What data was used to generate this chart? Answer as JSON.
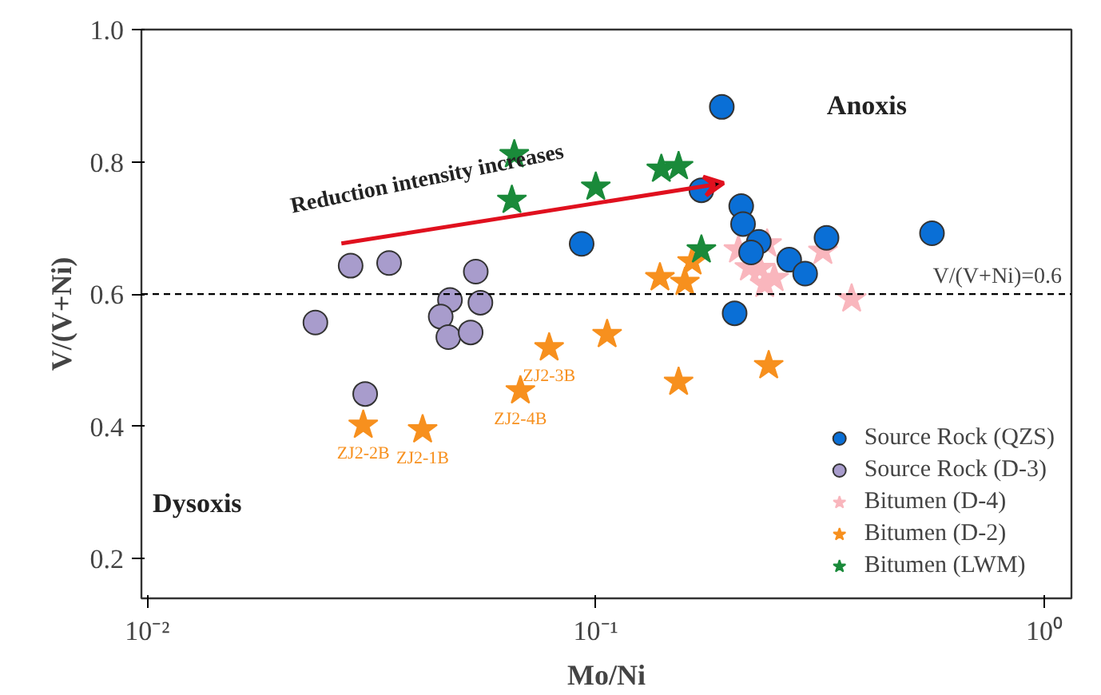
{
  "chart_data": {
    "type": "scatter",
    "xlabel": "Mo/Ni",
    "ylabel": "V/(V+Ni)",
    "log": "x",
    "grid": false,
    "legend": "bottom right",
    "xlim": [
      0.0097,
      1.15
    ],
    "xticks": [
      {
        "value": 0.01,
        "label": "10⁻²"
      },
      {
        "value": 0.1,
        "label": "10⁻¹"
      },
      {
        "value": 1,
        "label": "10⁰"
      }
    ],
    "ylim": [
      0.14,
      1.0
    ],
    "yticks": [
      0.2,
      0.4,
      0.6,
      0.8,
      {
        "value": 1.0,
        "label": "1.0"
      }
    ],
    "ref_lines": [
      {
        "axis": "y",
        "value": 0.6,
        "label": "V/(V+Ni)=0.6",
        "color": "#000000",
        "line_style": "dashed"
      }
    ],
    "series": [
      {
        "name": "Source Rock (QZS)",
        "color": "#0a6fd6",
        "marker": "circle",
        "x": [
          0.191,
          0.172,
          0.211,
          0.213,
          0.231,
          0.222,
          0.27,
          0.293,
          0.327,
          0.562,
          0.204,
          0.093
        ],
        "values": [
          0.883,
          0.757,
          0.733,
          0.706,
          0.679,
          0.663,
          0.652,
          0.631,
          0.685,
          0.692,
          0.571,
          0.676
        ]
      },
      {
        "name": "Source Rock (D-3)",
        "color": "#a89ccc",
        "marker": "circle",
        "x": [
          0.0284,
          0.0346,
          0.054,
          0.0473,
          0.0553,
          0.0451,
          0.0237,
          0.0469,
          0.0526,
          0.0306
        ],
        "values": [
          0.643,
          0.647,
          0.634,
          0.591,
          0.587,
          0.566,
          0.557,
          0.535,
          0.542,
          0.449
        ]
      },
      {
        "name": "Bitumen (D-4)",
        "color": "#f9b6bd",
        "marker": "star",
        "x": [
          0.208,
          0.241,
          0.22,
          0.232,
          0.25,
          0.238,
          0.321,
          0.372
        ],
        "values": [
          0.667,
          0.676,
          0.64,
          0.639,
          0.624,
          0.615,
          0.665,
          0.593
        ]
      },
      {
        "name": "Bitumen (D-2)",
        "color": "#f7901e",
        "marker": "star",
        "x": [
          0.0303,
          0.0411,
          0.0679,
          0.0787,
          0.106,
          0.153,
          0.243,
          0.139,
          0.158,
          0.164
        ],
        "values": [
          0.402,
          0.395,
          0.454,
          0.519,
          0.539,
          0.467,
          0.492,
          0.625,
          0.618,
          0.649
        ]
      },
      {
        "name": "Bitumen (LWM)",
        "color": "#1a8a3a",
        "marker": "star",
        "x": [
          0.0658,
          0.065,
          0.1,
          0.14,
          0.153,
          0.172
        ],
        "values": [
          0.811,
          0.742,
          0.762,
          0.789,
          0.793,
          0.667
        ]
      }
    ],
    "annotations": [
      "Anoxis",
      "Dysoxis",
      "Reduction intensity increases",
      {
        "text": "ZJ2-2B",
        "x": 0.0303,
        "y": 0.402
      },
      {
        "text": "ZJ2-1B",
        "x": 0.0411,
        "y": 0.395
      },
      {
        "text": "ZJ2-4B",
        "x": 0.0679,
        "y": 0.454
      },
      {
        "text": "ZJ2-3B",
        "x": 0.0787,
        "y": 0.519
      }
    ]
  }
}
